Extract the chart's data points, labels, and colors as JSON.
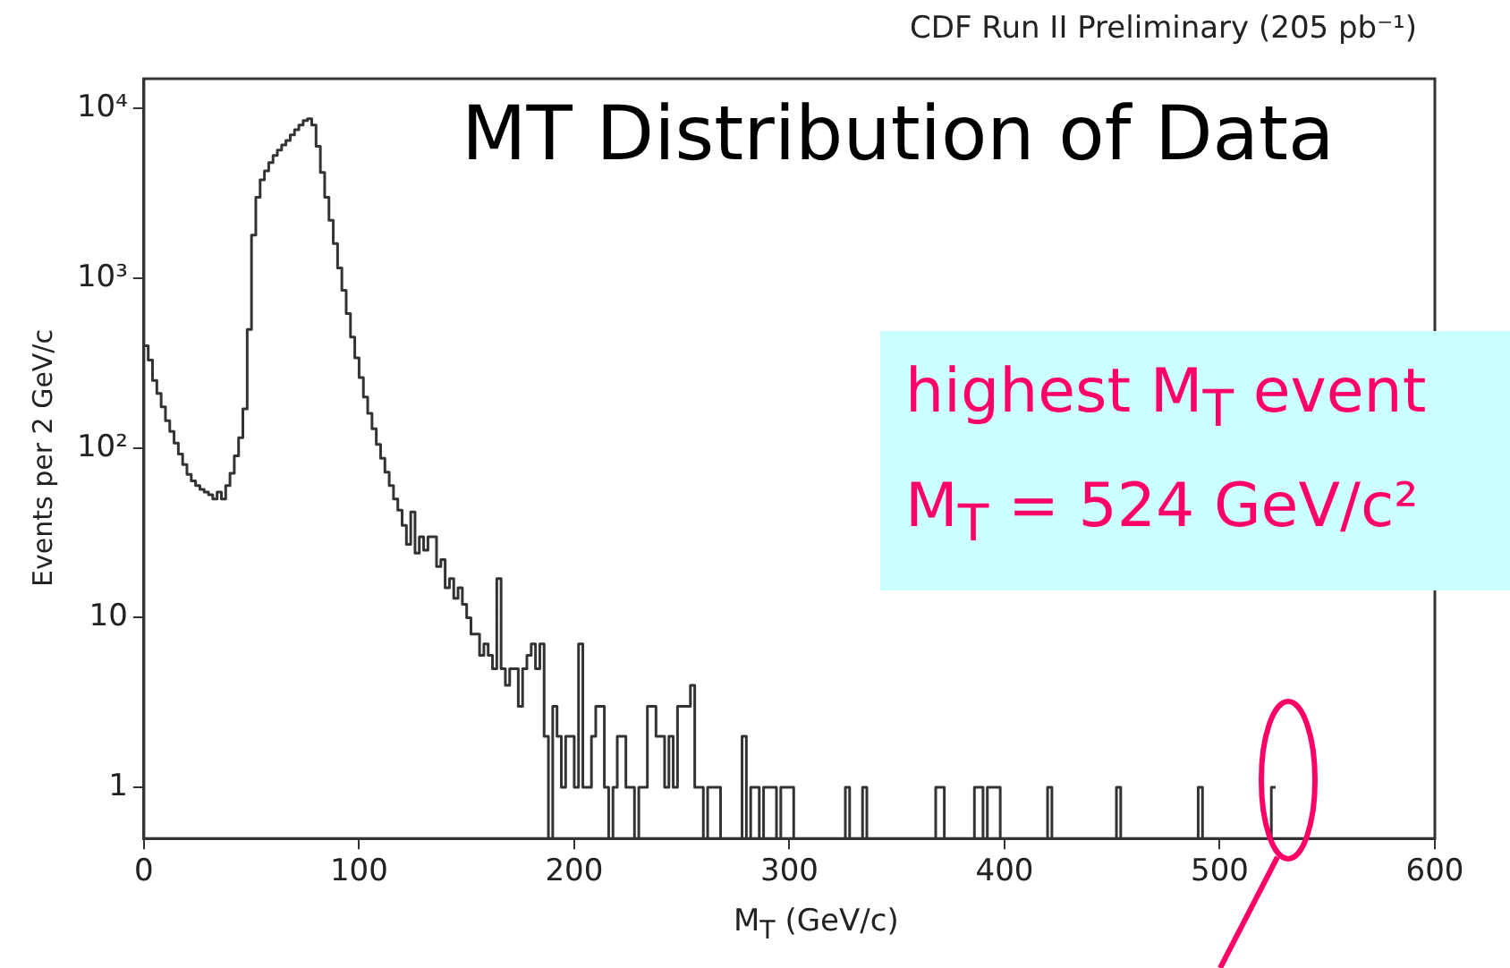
{
  "chart_data": {
    "type": "histogram",
    "title": "CDF Run II Preliminary (205 pb⁻¹)",
    "xlabel": "M$_{T}$ (GeV/c)",
    "ylabel": "Events per 2 GeV/c",
    "annotations": [
      "MT Distribution of Data",
      "highest M$_{T}$ event",
      "M$_{T}$ = 524 GeV/c²"
    ],
    "bins": [
      0,
      2,
      4,
      6,
      8,
      10,
      12,
      14,
      16,
      18,
      20,
      22,
      24,
      26,
      28,
      30,
      32,
      34,
      36,
      38,
      40,
      42,
      44,
      46,
      48,
      50,
      52,
      54,
      56,
      58,
      60,
      62,
      64,
      66,
      68,
      70,
      72,
      74,
      76,
      78,
      80,
      82,
      84,
      86,
      88,
      90,
      92,
      94,
      96,
      98,
      100,
      102,
      104,
      106,
      108,
      110,
      112,
      114,
      116,
      118,
      120,
      122,
      124,
      126,
      128,
      130,
      132,
      134,
      136,
      138,
      140,
      142,
      144,
      146,
      148,
      150,
      152,
      154,
      156,
      158,
      160,
      162,
      164,
      166,
      168,
      170,
      172,
      174,
      176,
      178,
      180,
      182,
      184,
      186,
      188,
      190,
      192,
      194,
      196,
      198,
      200,
      202,
      204,
      206,
      208,
      210,
      212,
      214,
      216,
      218,
      220,
      222,
      224,
      226,
      228,
      230,
      232,
      234,
      236,
      238,
      240,
      242,
      244,
      246,
      248,
      250,
      252,
      254,
      256,
      258,
      260,
      262,
      264,
      266,
      268,
      278,
      280,
      282,
      284,
      286,
      288,
      290,
      292,
      294,
      296,
      298,
      300,
      302,
      326,
      328,
      334,
      336,
      368,
      372,
      386,
      390,
      392,
      398,
      420,
      422,
      452,
      454,
      490,
      492,
      524,
      526
    ],
    "values": [
      400,
      330,
      250,
      210,
      175,
      145,
      125,
      107,
      92,
      80,
      70,
      64,
      60,
      57,
      55,
      53,
      50,
      55,
      50,
      60,
      71,
      90,
      115,
      170,
      500,
      1800,
      3000,
      3800,
      4300,
      4800,
      5300,
      5700,
      6100,
      6500,
      7000,
      7500,
      8000,
      8500,
      8700,
      8000,
      6000,
      4200,
      3000,
      2200,
      1600,
      1150,
      850,
      620,
      450,
      340,
      260,
      200,
      160,
      130,
      105,
      87,
      72,
      60,
      50,
      43,
      35,
      27,
      42,
      24,
      30,
      25,
      30,
      30,
      20,
      22,
      15,
      17,
      13,
      15,
      12,
      10,
      8,
      8,
      6,
      7,
      6,
      5,
      17,
      5,
      4,
      5,
      5,
      3,
      5,
      6,
      7,
      5,
      7,
      2,
      null,
      3,
      2,
      1,
      2,
      2,
      1,
      7,
      1,
      1,
      2,
      3,
      3,
      1,
      null,
      1,
      2,
      2,
      1,
      1,
      null,
      1,
      1,
      3,
      3,
      2,
      2,
      1,
      2,
      1,
      3,
      3,
      3,
      4,
      1,
      1,
      null,
      1,
      1,
      1,
      null,
      2,
      null,
      1,
      1,
      null,
      1,
      1,
      1,
      null,
      1,
      1,
      1,
      null,
      1,
      null,
      1,
      null,
      1,
      null,
      1,
      null,
      1,
      null,
      1,
      null,
      1,
      null,
      1,
      null,
      1
    ],
    "color": "#333333",
    "xlim": [
      0,
      600
    ],
    "xticks": [
      0,
      100,
      200,
      300,
      400,
      500,
      600
    ],
    "ylim": [
      0.5,
      15000
    ],
    "yticks": [
      1,
      10,
      {
        "value": 100,
        "label": "10²"
      },
      {
        "value": 1000,
        "label": "10³"
      },
      {
        "value": 10000,
        "label": "10⁴"
      }
    ],
    "log": true,
    "grid": false,
    "legend": false
  }
}
